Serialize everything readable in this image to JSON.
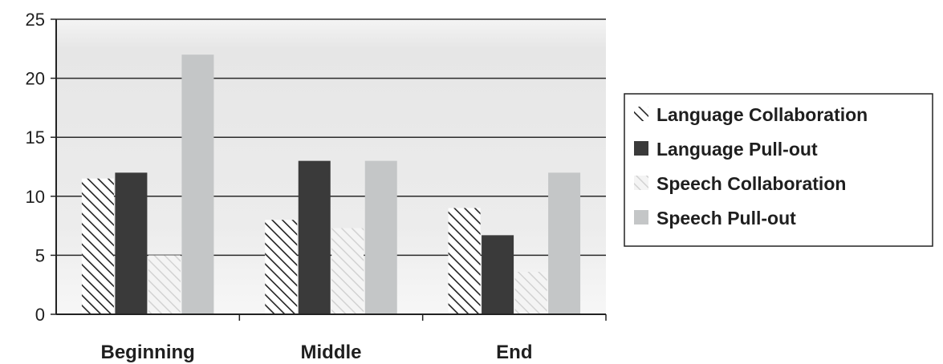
{
  "chart_data": {
    "type": "bar",
    "categories": [
      "Beginning",
      "Middle",
      "End"
    ],
    "series": [
      {
        "name": "Language Collaboration",
        "values": [
          11.5,
          8,
          9
        ],
        "pattern": "hatch-dark"
      },
      {
        "name": "Language Pull-out",
        "values": [
          12,
          13,
          6.7
        ],
        "color": "#3a3a3a"
      },
      {
        "name": "Speech Collaboration",
        "values": [
          5,
          7.3,
          3.6
        ],
        "pattern": "hatch-light"
      },
      {
        "name": "Speech Pull-out",
        "values": [
          22,
          13,
          12
        ],
        "color": "#c4c6c7"
      }
    ],
    "ylim": [
      0,
      25
    ],
    "yticks": [
      0,
      5,
      10,
      15,
      20,
      25
    ],
    "grid": true,
    "legend": "right"
  },
  "colors": {
    "text": "#1f1f1f",
    "grid": "#2a2a2a",
    "plot_background": "#ececec"
  }
}
